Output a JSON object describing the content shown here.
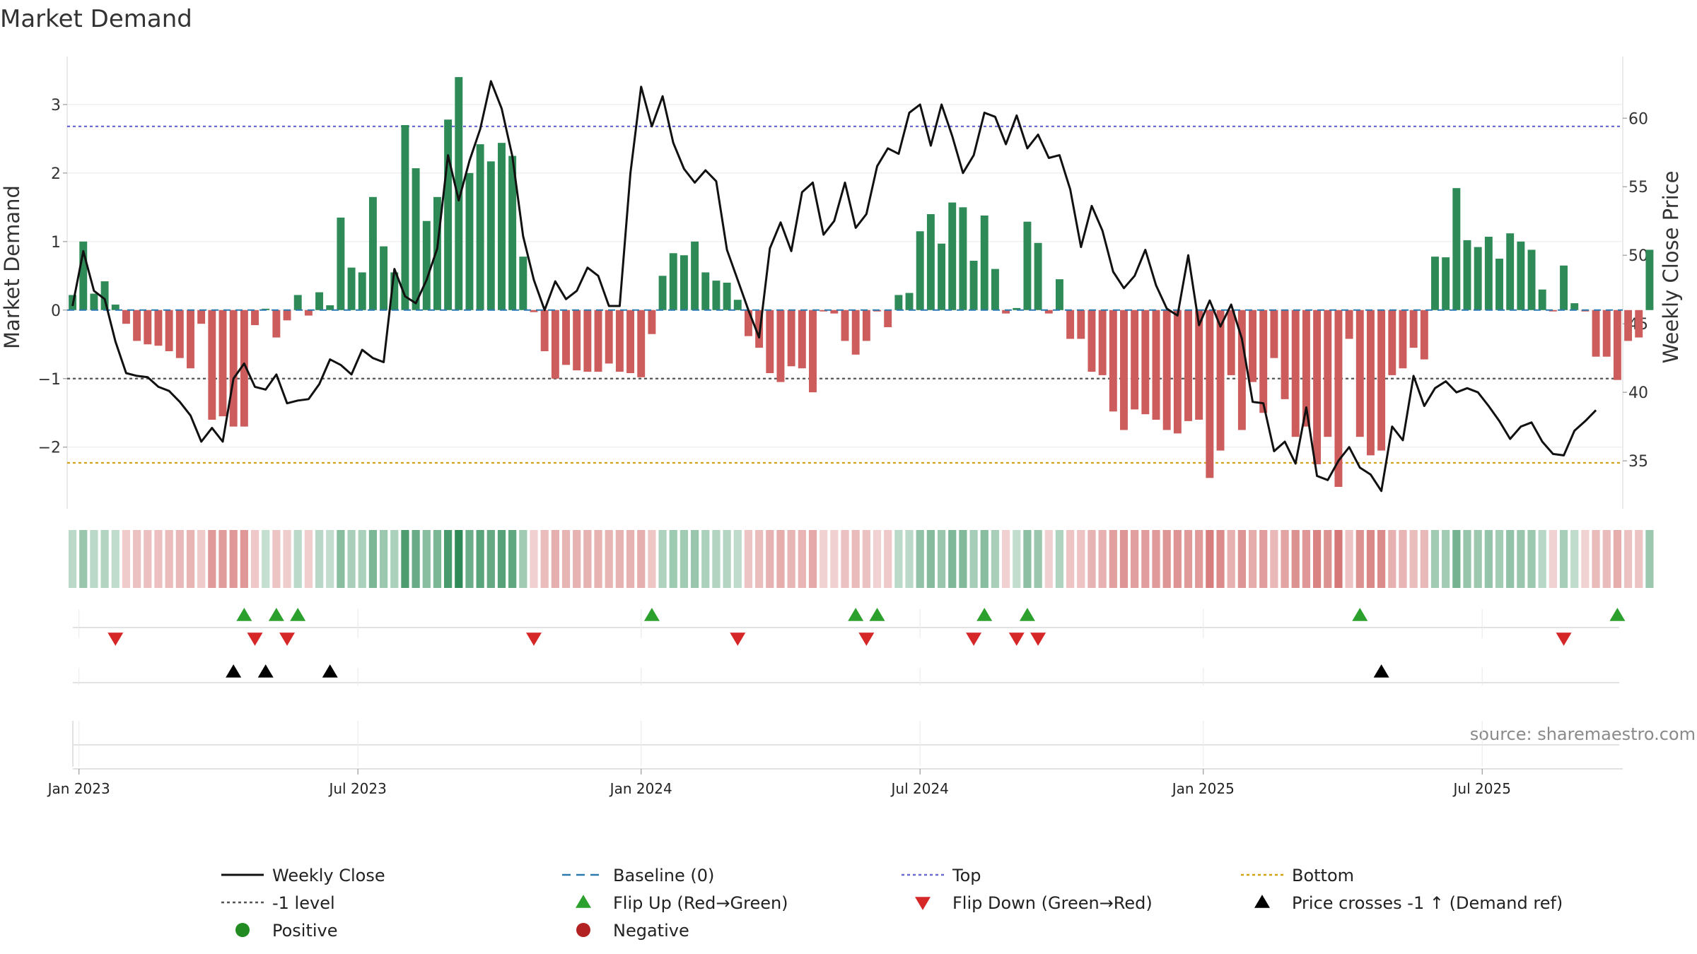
{
  "chart_data": {
    "type": "bar",
    "title": "Market Demand",
    "ylabel_left": "Market Demand",
    "ylabel_right": "Weekly Close Price",
    "ylim_left": [
      -2.9,
      3.7
    ],
    "ylim_right": [
      31.5,
      64.5
    ],
    "yticks_left": [
      -2,
      -1,
      0,
      1,
      2,
      3
    ],
    "ytick_labels_left": [
      "−2",
      "−1",
      "0",
      "1",
      "2",
      "3"
    ],
    "yticks_right": [
      35,
      40,
      45,
      50,
      55,
      60
    ],
    "ytick_labels_right": [
      "35",
      "40",
      "45",
      "50",
      "55",
      "60"
    ],
    "x_start_week": -0.5,
    "x_end_week": 144.5,
    "xticks": [
      {
        "label": "Jan 2023",
        "week": 0.6
      },
      {
        "label": "Jul 2023",
        "week": 26.6
      },
      {
        "label": "Jan 2024",
        "week": 53
      },
      {
        "label": "Jul 2024",
        "week": 79
      },
      {
        "label": "Jan 2025",
        "week": 105.4
      },
      {
        "label": "Jul 2025",
        "week": 131.4
      }
    ],
    "reference_lines": {
      "top": 2.68,
      "minus_one": -1,
      "bottom": -2.23,
      "baseline": 0
    },
    "colors": {
      "positive": "#2e8b57",
      "negative": "#cd5c5c",
      "price": "#111111",
      "top": "#6b6bd6",
      "bottom": "#d4a017",
      "minus_one": "#555555",
      "baseline": "#2a7ab0",
      "flip_up": "#2ca02c",
      "flip_down": "#d62728",
      "cross": "#000000"
    },
    "demand": [
      0.22,
      1.0,
      0.24,
      0.42,
      0.08,
      -0.2,
      -0.45,
      -0.5,
      -0.52,
      -0.6,
      -0.7,
      -0.85,
      -0.2,
      -1.6,
      -1.55,
      -1.7,
      -1.7,
      -0.22,
      0.02,
      -0.4,
      -0.15,
      0.22,
      -0.08,
      0.26,
      0.07,
      1.35,
      0.62,
      0.55,
      1.65,
      0.93,
      0.55,
      2.7,
      2.07,
      1.3,
      1.65,
      2.78,
      3.4,
      2.0,
      2.42,
      2.17,
      2.44,
      2.25,
      0.78,
      -0.03,
      -0.6,
      -1.0,
      -0.8,
      -0.88,
      -0.9,
      -0.9,
      -0.78,
      -0.9,
      -0.92,
      -0.98,
      -0.35,
      0.5,
      0.83,
      0.8,
      1.0,
      0.55,
      0.43,
      0.4,
      0.15,
      -0.38,
      -0.55,
      -0.92,
      -1.05,
      -0.82,
      -0.85,
      -1.2,
      -0.02,
      -0.05,
      -0.45,
      -0.65,
      -0.45,
      -0.02,
      -0.25,
      0.22,
      0.25,
      1.15,
      1.4,
      0.97,
      1.57,
      1.5,
      0.72,
      1.38,
      0.6,
      -0.05,
      0.03,
      1.29,
      0.98,
      -0.05,
      0.45,
      -0.42,
      -0.42,
      -0.9,
      -0.95,
      -1.48,
      -1.75,
      -1.45,
      -1.52,
      -1.6,
      -1.75,
      -1.8,
      -1.62,
      -1.6,
      -2.45,
      -2.05,
      -0.95,
      -1.75,
      -1.05,
      -1.5,
      -0.7,
      -1.3,
      -1.85,
      -1.7,
      -2.25,
      -1.85,
      -2.58,
      -0.42,
      -1.85,
      -2.12,
      -2.05,
      -0.95,
      -0.85,
      -0.55,
      -0.72,
      0.78,
      0.77,
      1.78,
      1.02,
      0.92,
      1.07,
      0.75,
      1.12,
      1.0,
      0.88,
      0.3,
      -0.02,
      0.65,
      0.1,
      -0.02,
      -0.68,
      -0.68,
      -1.02,
      -0.45,
      -0.4,
      0.88
    ],
    "price": [
      46.3,
      50.3,
      47.4,
      46.8,
      43.7,
      41.4,
      41.2,
      41.1,
      40.4,
      40.1,
      39.3,
      38.3,
      36.4,
      37.4,
      36.4,
      41.0,
      42.1,
      40.4,
      40.2,
      41.3,
      39.2,
      39.4,
      39.5,
      40.6,
      42.4,
      42.0,
      41.3,
      43.1,
      42.5,
      42.2,
      49.0,
      47.0,
      46.5,
      48.2,
      50.5,
      57.3,
      54.0,
      56.9,
      59.2,
      62.7,
      60.7,
      57.2,
      51.4,
      48.2,
      46.0,
      48.1,
      46.8,
      47.4,
      49.1,
      48.5,
      46.3,
      46.3,
      56.0,
      62.3,
      59.4,
      61.6,
      58.2,
      56.3,
      55.3,
      56.2,
      55.4,
      50.4,
      48.2,
      46.0,
      44.0,
      50.5,
      52.4,
      50.3,
      54.6,
      55.3,
      51.5,
      52.5,
      55.3,
      52.0,
      53.0,
      56.5,
      57.8,
      57.4,
      60.4,
      61.0,
      58.0,
      61.0,
      58.7,
      56.0,
      57.3,
      60.4,
      60.1,
      58.1,
      60.2,
      57.8,
      58.8,
      57.1,
      57.3,
      54.8,
      50.6,
      53.6,
      51.8,
      48.8,
      47.6,
      48.5,
      50.4,
      47.8,
      46.1,
      45.6,
      50.0,
      44.9,
      46.7,
      44.8,
      46.4,
      43.9,
      39.3,
      39.2,
      35.7,
      36.4,
      34.8,
      38.9,
      33.9,
      33.6,
      35.0,
      36.0,
      34.5,
      34.0,
      32.8,
      37.5,
      36.5,
      41.2,
      39.0,
      40.3,
      40.8,
      40.0,
      40.3,
      40.0,
      39.0,
      37.9,
      36.6,
      37.5,
      37.8,
      36.4,
      35.5,
      35.4,
      37.2,
      37.9,
      38.7
    ],
    "flip_up_weeks": [
      16,
      19,
      21,
      54,
      73,
      75,
      85,
      89,
      120,
      144
    ],
    "flip_down_weeks": [
      4,
      17,
      20,
      43,
      62,
      74,
      84,
      88,
      90,
      139
    ],
    "cross_weeks": [
      15,
      18,
      24,
      122
    ],
    "source": "source: sharemaestro.com",
    "legend": [
      {
        "label": "Weekly Close",
        "marker": "line",
        "color": "#111111"
      },
      {
        "label": "Baseline (0)",
        "marker": "dash",
        "color": "#2a7ab0"
      },
      {
        "label": "Top",
        "marker": "dot",
        "color": "#6b6bd6"
      },
      {
        "label": "Bottom",
        "marker": "dot",
        "color": "#d4a017"
      },
      {
        "label": "-1 level",
        "marker": "dot",
        "color": "#555555"
      },
      {
        "label": "Flip Up (Red→Green)",
        "marker": "tri-up",
        "color": "#2ca02c"
      },
      {
        "label": "Flip Down (Green→Red)",
        "marker": "tri-down",
        "color": "#d62728"
      },
      {
        "label": "Price crosses -1 ↑ (Demand ref)",
        "marker": "tri-up",
        "color": "#000000"
      },
      {
        "label": "Positive",
        "marker": "circle",
        "color": "#228b22"
      },
      {
        "label": "Negative",
        "marker": "circle",
        "color": "#b22222"
      }
    ]
  }
}
